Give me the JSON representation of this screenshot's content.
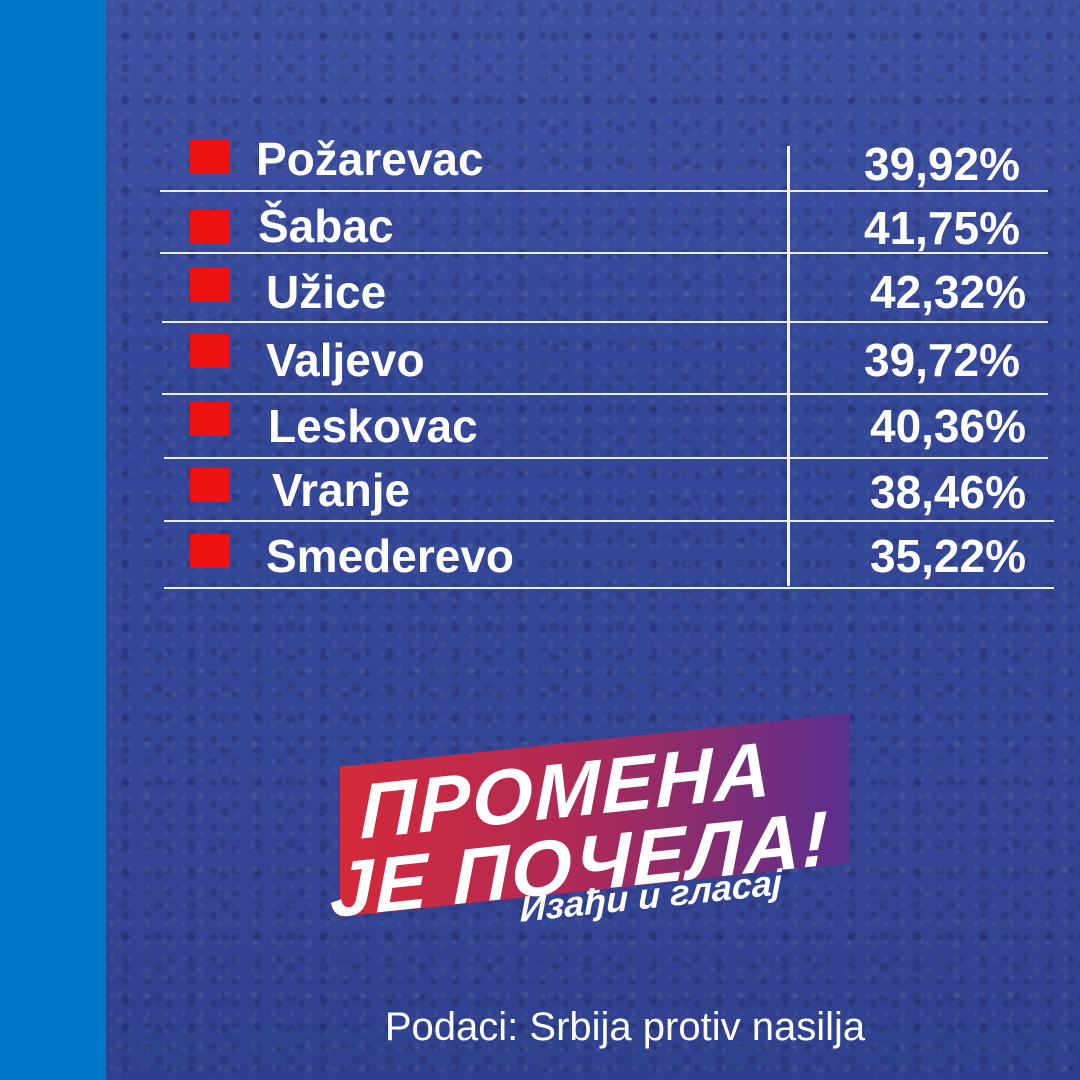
{
  "rows": [
    {
      "city": "Požarevac",
      "percent": "39,92%"
    },
    {
      "city": "Šabac",
      "percent": "41,75%"
    },
    {
      "city": "Užice",
      "percent": "42,32%"
    },
    {
      "city": "Valjevo",
      "percent": "39,72%"
    },
    {
      "city": "Leskovac",
      "percent": "40,36%"
    },
    {
      "city": "Vranje",
      "percent": "38,46%"
    },
    {
      "city": "Smederevo",
      "percent": "35,22%"
    }
  ],
  "logo": {
    "line1": "ПРОМЕНА",
    "line2": "ЈЕ ПОЧЕЛА!",
    "tagline": "Изађи и гласај"
  },
  "source": "Podaci: Srbija protiv nasilja",
  "colors": {
    "side_bar": "#0077c8",
    "marker": "#ee1111",
    "logo_gradient_start": "#d42a3a",
    "logo_gradient_end": "#5a2f8e"
  }
}
